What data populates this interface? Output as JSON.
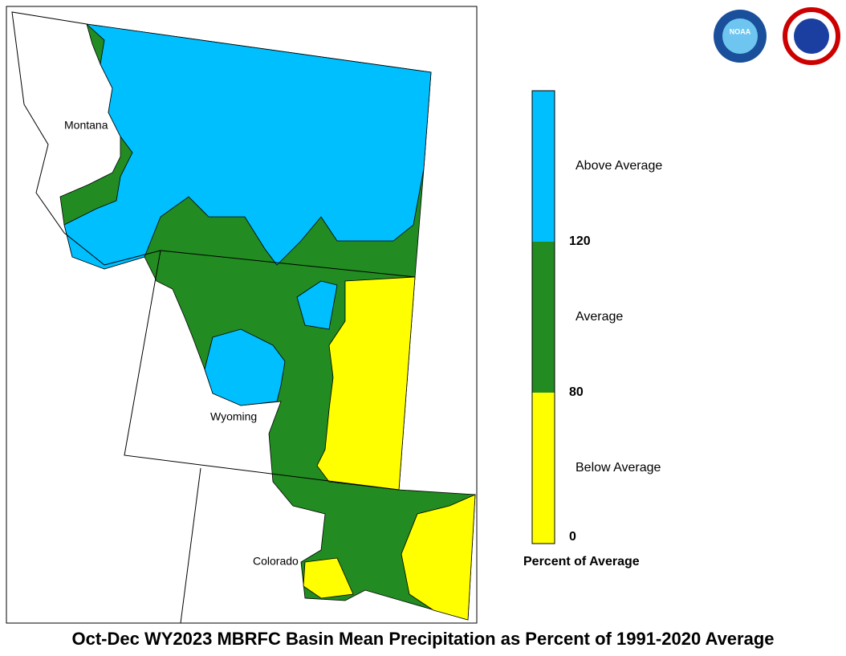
{
  "title": "Oct-Dec WY2023 MBRFC Basin Mean Precipitation as Percent of 1991-2020 Average",
  "states": [
    "Montana",
    "Wyoming",
    "Colorado"
  ],
  "logos": {
    "noaa": "NOAA"
  },
  "legend": {
    "title": "Percent of Average",
    "classes": [
      {
        "label": "Above Average",
        "color": "#00bfff"
      },
      {
        "label": "Average",
        "color": "#228b22"
      },
      {
        "label": "Below Average",
        "color": "#ffff00"
      }
    ],
    "ticks": [
      120,
      80,
      0
    ]
  }
}
